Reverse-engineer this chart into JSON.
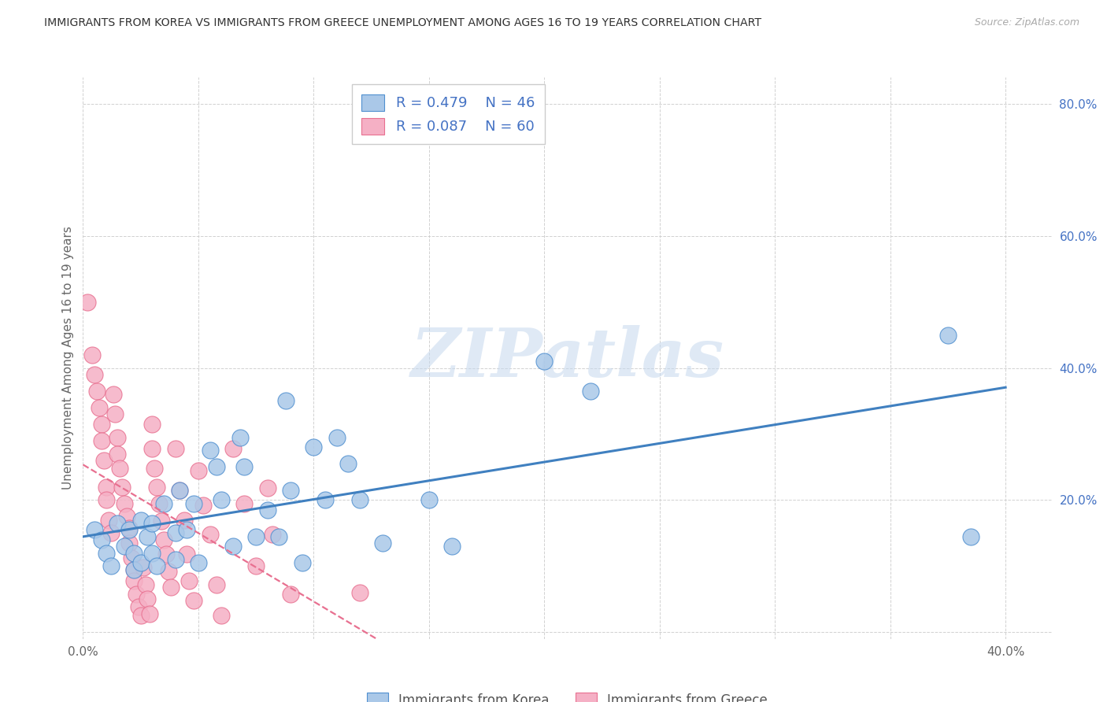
{
  "title": "IMMIGRANTS FROM KOREA VS IMMIGRANTS FROM GREECE UNEMPLOYMENT AMONG AGES 16 TO 19 YEARS CORRELATION CHART",
  "source": "Source: ZipAtlas.com",
  "ylabel": "Unemployment Among Ages 16 to 19 years",
  "xlim": [
    0.0,
    0.42
  ],
  "ylim": [
    -0.01,
    0.84
  ],
  "xticks": [
    0.0,
    0.05,
    0.1,
    0.15,
    0.2,
    0.25,
    0.3,
    0.35,
    0.4
  ],
  "yticks": [
    0.0,
    0.2,
    0.4,
    0.6,
    0.8
  ],
  "korea_R": 0.479,
  "korea_N": 46,
  "greece_R": 0.087,
  "greece_N": 60,
  "korea_color": "#aac8e8",
  "greece_color": "#f5b0c5",
  "korea_edge_color": "#5090d0",
  "greece_edge_color": "#e87090",
  "korea_line_color": "#4080c0",
  "greece_line_color": "#e87090",
  "watermark": "ZIPatlas",
  "korea_legend_label": "Immigrants from Korea",
  "greece_legend_label": "Immigrants from Greece",
  "korea_x": [
    0.005,
    0.008,
    0.01,
    0.012,
    0.015,
    0.018,
    0.02,
    0.022,
    0.022,
    0.025,
    0.025,
    0.028,
    0.03,
    0.03,
    0.032,
    0.035,
    0.04,
    0.04,
    0.042,
    0.045,
    0.048,
    0.05,
    0.055,
    0.058,
    0.06,
    0.065,
    0.068,
    0.07,
    0.075,
    0.08,
    0.085,
    0.088,
    0.09,
    0.095,
    0.1,
    0.105,
    0.11,
    0.115,
    0.12,
    0.13,
    0.15,
    0.16,
    0.2,
    0.22,
    0.375,
    0.385
  ],
  "korea_y": [
    0.155,
    0.14,
    0.12,
    0.1,
    0.165,
    0.13,
    0.155,
    0.12,
    0.095,
    0.17,
    0.105,
    0.145,
    0.165,
    0.12,
    0.1,
    0.195,
    0.15,
    0.11,
    0.215,
    0.155,
    0.195,
    0.105,
    0.275,
    0.25,
    0.2,
    0.13,
    0.295,
    0.25,
    0.145,
    0.185,
    0.145,
    0.35,
    0.215,
    0.105,
    0.28,
    0.2,
    0.295,
    0.255,
    0.2,
    0.135,
    0.2,
    0.13,
    0.41,
    0.365,
    0.45,
    0.145
  ],
  "greece_x": [
    0.002,
    0.004,
    0.005,
    0.006,
    0.007,
    0.008,
    0.008,
    0.009,
    0.01,
    0.01,
    0.011,
    0.012,
    0.013,
    0.014,
    0.015,
    0.015,
    0.016,
    0.017,
    0.018,
    0.019,
    0.02,
    0.02,
    0.021,
    0.022,
    0.022,
    0.023,
    0.024,
    0.025,
    0.026,
    0.027,
    0.028,
    0.029,
    0.03,
    0.03,
    0.031,
    0.032,
    0.033,
    0.034,
    0.035,
    0.036,
    0.037,
    0.038,
    0.04,
    0.042,
    0.044,
    0.045,
    0.046,
    0.048,
    0.05,
    0.052,
    0.055,
    0.058,
    0.06,
    0.065,
    0.07,
    0.075,
    0.08,
    0.082,
    0.09,
    0.12
  ],
  "greece_y": [
    0.5,
    0.42,
    0.39,
    0.365,
    0.34,
    0.315,
    0.29,
    0.26,
    0.22,
    0.2,
    0.17,
    0.15,
    0.36,
    0.33,
    0.295,
    0.27,
    0.248,
    0.22,
    0.195,
    0.175,
    0.158,
    0.135,
    0.112,
    0.095,
    0.078,
    0.058,
    0.038,
    0.025,
    0.098,
    0.072,
    0.05,
    0.028,
    0.315,
    0.278,
    0.248,
    0.22,
    0.195,
    0.168,
    0.14,
    0.118,
    0.092,
    0.068,
    0.278,
    0.215,
    0.17,
    0.118,
    0.078,
    0.048,
    0.245,
    0.192,
    0.148,
    0.072,
    0.025,
    0.278,
    0.195,
    0.1,
    0.218,
    0.148,
    0.058,
    0.06
  ]
}
